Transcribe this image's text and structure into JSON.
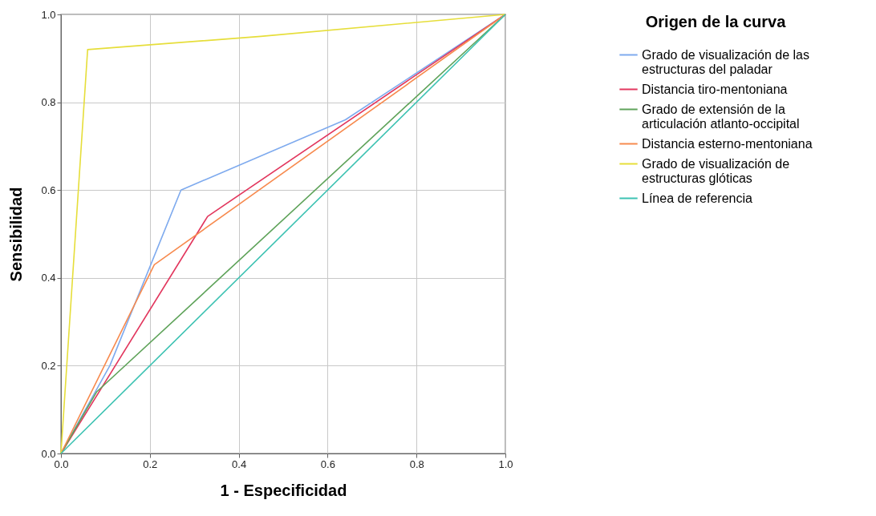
{
  "chart_data": {
    "type": "line",
    "xlabel": "1 - Especificidad",
    "ylabel": "Sensibilidad",
    "legend_title": "Origen de la curva",
    "legend": "top right",
    "grid": true,
    "marker": "none",
    "line_style": "solid",
    "xlim": [
      0,
      1
    ],
    "ylim": [
      0,
      1
    ],
    "xticks": [
      {
        "value": 0,
        "label": "0.0"
      },
      {
        "value": 0.2,
        "label": "0.2"
      },
      {
        "value": 0.4,
        "label": "0.4"
      },
      {
        "value": 0.6,
        "label": "0.6"
      },
      {
        "value": 0.8,
        "label": "0.8"
      },
      {
        "value": 1,
        "label": "1.0"
      }
    ],
    "yticks": [
      {
        "value": 0,
        "label": "0.0"
      },
      {
        "value": 0.2,
        "label": "0.2"
      },
      {
        "value": 0.4,
        "label": "0.4"
      },
      {
        "value": 0.6,
        "label": "0.6"
      },
      {
        "value": 0.8,
        "label": "0.8"
      },
      {
        "value": 1,
        "label": "1.0"
      }
    ],
    "series": [
      {
        "name": "Grado de visualización de las estructuras del paladar",
        "color": "#7eaaee",
        "x": [
          0,
          0.11,
          0.27,
          0.64,
          1
        ],
        "values": [
          0,
          0.2,
          0.6,
          0.76,
          1
        ]
      },
      {
        "name": "Distancia tiro-mentoniana",
        "color": "#e2375e",
        "x": [
          0,
          0.33,
          1
        ],
        "values": [
          0,
          0.54,
          1
        ]
      },
      {
        "name": "Grado de extensión de la articulación atlanto-occipital",
        "color": "#5fa35a",
        "x": [
          0,
          0.08,
          1
        ],
        "values": [
          0,
          0.14,
          1
        ]
      },
      {
        "name": "Distancia esterno-mentoniana",
        "color": "#f78a4e",
        "x": [
          0,
          0.21,
          1
        ],
        "values": [
          0,
          0.43,
          1
        ]
      },
      {
        "name": "Grado de visualización de estructuras glóticas",
        "color": "#e6de3a",
        "x": [
          0,
          0.06,
          0.45,
          1
        ],
        "values": [
          0,
          0.92,
          0.95,
          1
        ]
      },
      {
        "name": "Línea de referencia",
        "color": "#3cc2b2",
        "x": [
          0,
          1
        ],
        "values": [
          0,
          1
        ]
      }
    ]
  }
}
